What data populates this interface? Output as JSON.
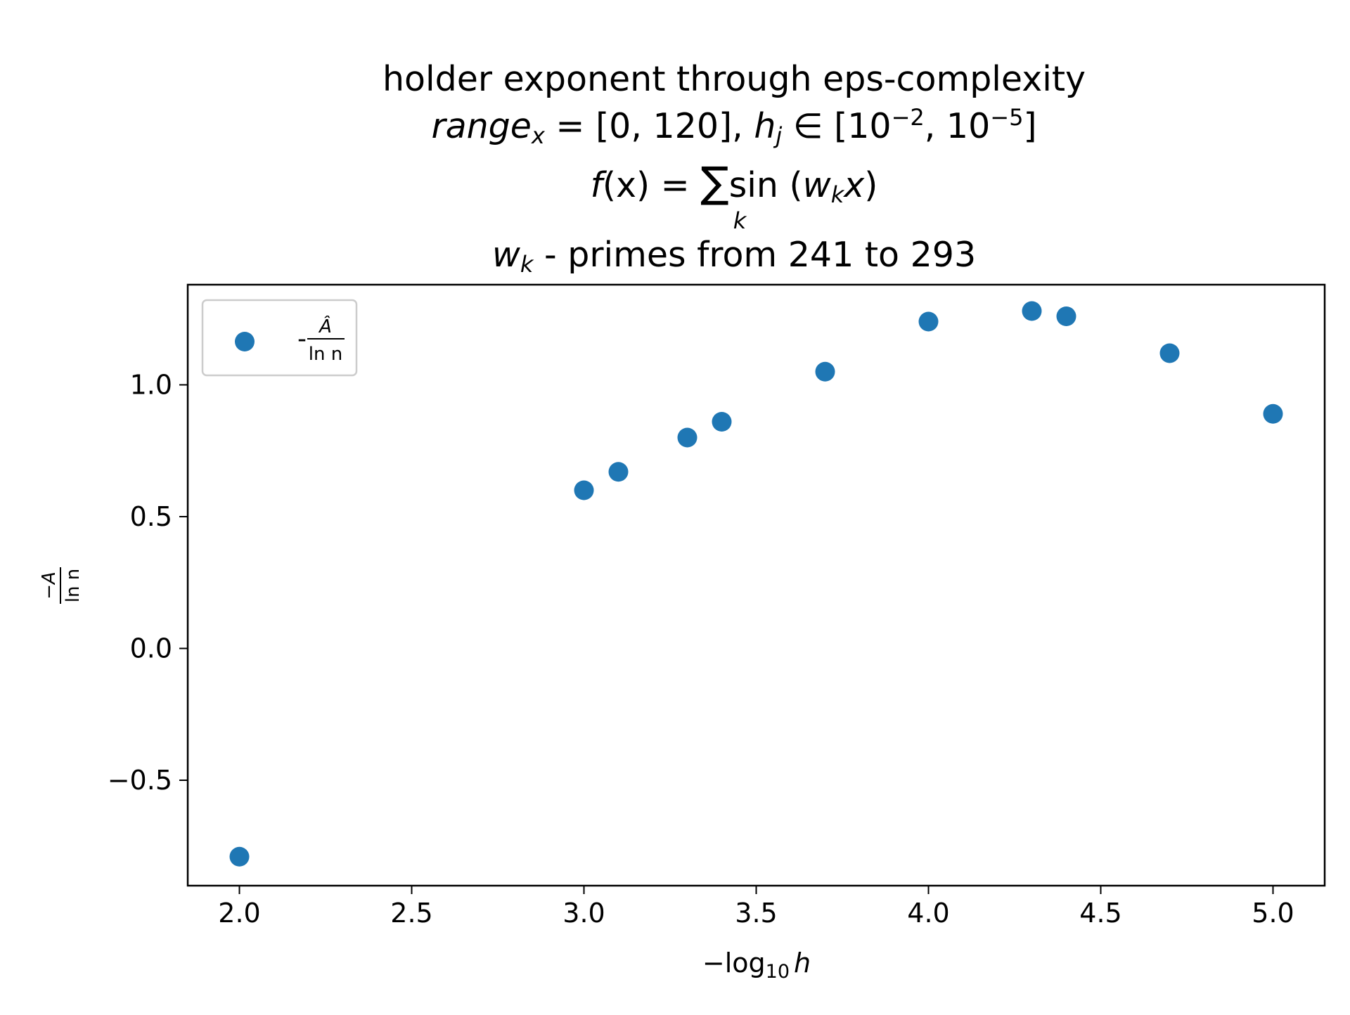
{
  "chart_data": {
    "type": "scatter",
    "title": {
      "line1": "holder exponent through eps-complexity",
      "line2": {
        "range_word": "range",
        "range_sub": "x",
        "range_value": " = [0, 120], ",
        "h": "h",
        "h_sub": "j",
        "in_set": " ∈ [10",
        "exp1": "−2",
        "sep": ", 10",
        "exp2": "−5",
        "close": "]"
      },
      "line3": {
        "f": "f",
        "lhs_rest": "(x) = ",
        "sum": "∑",
        "sum_sub": "k",
        "sin": "sin (",
        "w": "w",
        "w_sub": "k",
        "x": "x",
        "close": ")"
      },
      "line4": {
        "w": "w",
        "w_sub": "k",
        "text": " - primes from 241 to 293"
      }
    },
    "xlabel": {
      "prefix": "−log",
      "sub": "10",
      "var": "h"
    },
    "ylabel": {
      "num": "−A",
      "den": "ln n"
    },
    "legend": {
      "position": "top-left",
      "prefix": "-",
      "num": "Â",
      "den": "ln n"
    },
    "x_ticks": [
      "2.0",
      "2.5",
      "3.0",
      "3.5",
      "4.0",
      "4.5",
      "5.0"
    ],
    "y_ticks": [
      "1.0",
      "0.5",
      "0.0",
      "−0.5"
    ],
    "xlim": [
      1.85,
      5.15
    ],
    "ylim": [
      -0.9,
      1.38
    ],
    "grid": false,
    "marker_color": "#1f77b4",
    "series": [
      {
        "x": [
          2.0,
          3.0,
          3.1,
          3.3,
          3.4,
          3.7,
          4.0,
          4.3,
          4.4,
          4.7,
          5.0
        ],
        "y": [
          -0.79,
          0.6,
          0.67,
          0.8,
          0.86,
          1.05,
          1.24,
          1.28,
          1.26,
          1.12,
          0.89
        ]
      }
    ]
  }
}
